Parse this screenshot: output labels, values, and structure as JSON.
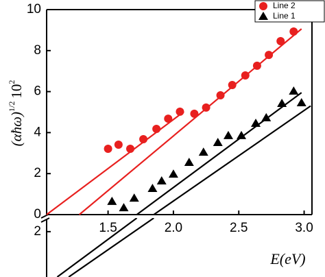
{
  "chart_data": {
    "type": "scatter",
    "y_label": [
      "(αħω)",
      "1/2",
      "10",
      "2"
    ],
    "x_label": "E(eV)",
    "xlim": [
      1.03,
      3.06
    ],
    "xticks": [
      1.5,
      {
        "value": 2,
        "label": "2.0"
      },
      2.5,
      {
        "value": 3,
        "label": "3.0"
      }
    ],
    "ylim": [
      0,
      10
    ],
    "yticks": [
      0,
      2,
      4,
      6,
      8,
      10
    ],
    "lower_ylim": [
      0,
      2.6
    ],
    "lower_yticks": [
      2
    ],
    "series": [
      {
        "name": "Line 2",
        "color": "#e8201f",
        "marker": "circle",
        "x": [
          1.5,
          1.58,
          1.67,
          1.77,
          1.87,
          1.96,
          2.05,
          2.16,
          2.25,
          2.36,
          2.45,
          2.55,
          2.64,
          2.73,
          2.82,
          2.92
        ],
        "values": [
          3.21,
          3.41,
          3.21,
          3.68,
          4.18,
          4.68,
          5.02,
          4.92,
          5.22,
          5.82,
          6.32,
          6.79,
          7.26,
          7.79,
          8.46,
          8.93
        ]
      },
      {
        "name": "Line 1",
        "color": "#000000",
        "marker": "triangle",
        "x": [
          1.53,
          1.62,
          1.7,
          1.84,
          1.91,
          2.0,
          2.12,
          2.23,
          2.34,
          2.42,
          2.52,
          2.63,
          2.71,
          2.83,
          2.92,
          2.98
        ],
        "values": [
          0.64,
          0.33,
          0.8,
          1.27,
          1.64,
          1.97,
          2.54,
          3.04,
          3.51,
          3.85,
          3.85,
          4.45,
          4.72,
          5.42,
          6.02,
          5.45
        ]
      }
    ],
    "fits": [
      {
        "color": "#e8201f",
        "x": [
          1.03,
          2.08
        ],
        "y": [
          0,
          5.02
        ],
        "extend": false
      },
      {
        "color": "#e8201f",
        "x": [
          1.28,
          2.98
        ],
        "y": [
          0,
          9.06
        ],
        "extend": false
      },
      {
        "color": "#000000",
        "x": [
          1.72,
          2.98
        ],
        "y": [
          0,
          5.95
        ],
        "extend": true
      },
      {
        "color": "#000000",
        "x": [
          1.85,
          3.05
        ],
        "y": [
          0,
          5.3
        ],
        "extend": true
      }
    ]
  }
}
